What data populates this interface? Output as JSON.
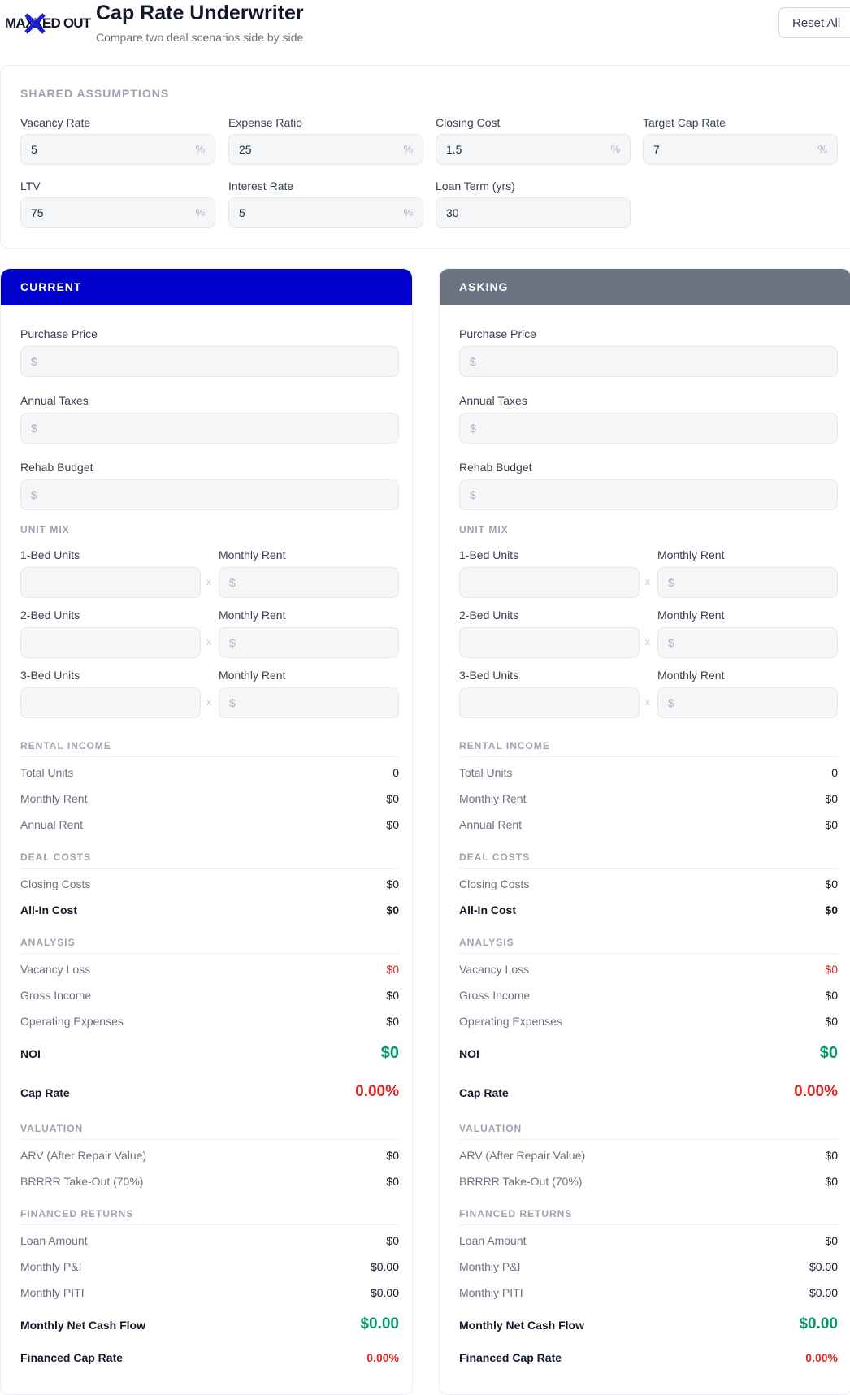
{
  "header": {
    "logo_text": "MAXXED OUT",
    "title": "Cap Rate Underwriter",
    "subtitle": "Compare two deal scenarios side by side",
    "reset_label": "Reset All"
  },
  "shared": {
    "section_label": "SHARED ASSUMPTIONS",
    "fields": [
      {
        "label": "Vacancy Rate",
        "value": "5",
        "suffix": "%"
      },
      {
        "label": "Expense Ratio",
        "value": "25",
        "suffix": "%"
      },
      {
        "label": "Closing Cost",
        "value": "1.5",
        "suffix": "%"
      },
      {
        "label": "Target Cap Rate",
        "value": "7",
        "suffix": "%"
      },
      {
        "label": "LTV",
        "value": "75",
        "suffix": "%"
      },
      {
        "label": "Interest Rate",
        "value": "5",
        "suffix": "%"
      },
      {
        "label": "Loan Term (yrs)",
        "value": "30",
        "suffix": ""
      }
    ]
  },
  "scenarios": [
    {
      "title": "CURRENT",
      "color": "#0000cc",
      "purchase_price_label": "Purchase Price",
      "annual_taxes_label": "Annual Taxes",
      "rehab_budget_label": "Rehab Budget",
      "dollar_prefix": "$",
      "unit_mix_label": "UNIT MIX",
      "units": [
        {
          "label": "1-Bed Units",
          "rent_label": "Monthly Rent"
        },
        {
          "label": "2-Bed Units",
          "rent_label": "Monthly Rent"
        },
        {
          "label": "3-Bed Units",
          "rent_label": "Monthly Rent"
        }
      ],
      "times": "x",
      "rental_income": {
        "label": "RENTAL INCOME",
        "total_units_k": "Total Units",
        "total_units_v": "0",
        "monthly_rent_k": "Monthly Rent",
        "monthly_rent_v": "$0",
        "annual_rent_k": "Annual Rent",
        "annual_rent_v": "$0"
      },
      "deal_costs": {
        "label": "DEAL COSTS",
        "closing_k": "Closing Costs",
        "closing_v": "$0",
        "allin_k": "All-In Cost",
        "allin_v": "$0"
      },
      "analysis": {
        "label": "ANALYSIS",
        "vacancy_k": "Vacancy Loss",
        "vacancy_v": "$0",
        "gross_k": "Gross Income",
        "gross_v": "$0",
        "opex_k": "Operating Expenses",
        "opex_v": "$0",
        "noi_k": "NOI",
        "noi_v": "$0",
        "cap_k": "Cap Rate",
        "cap_v": "0.00%"
      },
      "valuation": {
        "label": "VALUATION",
        "arv_k": "ARV (After Repair Value)",
        "arv_v": "$0",
        "brrrr_k": "BRRRR Take-Out (70%)",
        "brrrr_v": "$0"
      },
      "financed": {
        "label": "FINANCED RETURNS",
        "loan_k": "Loan Amount",
        "loan_v": "$0",
        "pi_k": "Monthly P&I",
        "pi_v": "$0.00",
        "piti_k": "Monthly PITI",
        "piti_v": "$0.00",
        "ncf_k": "Monthly Net Cash Flow",
        "ncf_v": "$0.00",
        "fcap_k": "Financed Cap Rate",
        "fcap_v": "0.00%"
      }
    },
    {
      "title": "ASKING",
      "color": "#6b7280",
      "purchase_price_label": "Purchase Price",
      "annual_taxes_label": "Annual Taxes",
      "rehab_budget_label": "Rehab Budget",
      "dollar_prefix": "$",
      "unit_mix_label": "UNIT MIX",
      "units": [
        {
          "label": "1-Bed Units",
          "rent_label": "Monthly Rent"
        },
        {
          "label": "2-Bed Units",
          "rent_label": "Monthly Rent"
        },
        {
          "label": "3-Bed Units",
          "rent_label": "Monthly Rent"
        }
      ],
      "times": "x",
      "rental_income": {
        "label": "RENTAL INCOME",
        "total_units_k": "Total Units",
        "total_units_v": "0",
        "monthly_rent_k": "Monthly Rent",
        "monthly_rent_v": "$0",
        "annual_rent_k": "Annual Rent",
        "annual_rent_v": "$0"
      },
      "deal_costs": {
        "label": "DEAL COSTS",
        "closing_k": "Closing Costs",
        "closing_v": "$0",
        "allin_k": "All-In Cost",
        "allin_v": "$0"
      },
      "analysis": {
        "label": "ANALYSIS",
        "vacancy_k": "Vacancy Loss",
        "vacancy_v": "$0",
        "gross_k": "Gross Income",
        "gross_v": "$0",
        "opex_k": "Operating Expenses",
        "opex_v": "$0",
        "noi_k": "NOI",
        "noi_v": "$0",
        "cap_k": "Cap Rate",
        "cap_v": "0.00%"
      },
      "valuation": {
        "label": "VALUATION",
        "arv_k": "ARV (After Repair Value)",
        "arv_v": "$0",
        "brrrr_k": "BRRRR Take-Out (70%)",
        "brrrr_v": "$0"
      },
      "financed": {
        "label": "FINANCED RETURNS",
        "loan_k": "Loan Amount",
        "loan_v": "$0",
        "pi_k": "Monthly P&I",
        "pi_v": "$0.00",
        "piti_k": "Monthly PITI",
        "piti_v": "$0.00",
        "ncf_k": "Monthly Net Cash Flow",
        "ncf_v": "$0.00",
        "fcap_k": "Financed Cap Rate",
        "fcap_v": "0.00%"
      }
    }
  ]
}
